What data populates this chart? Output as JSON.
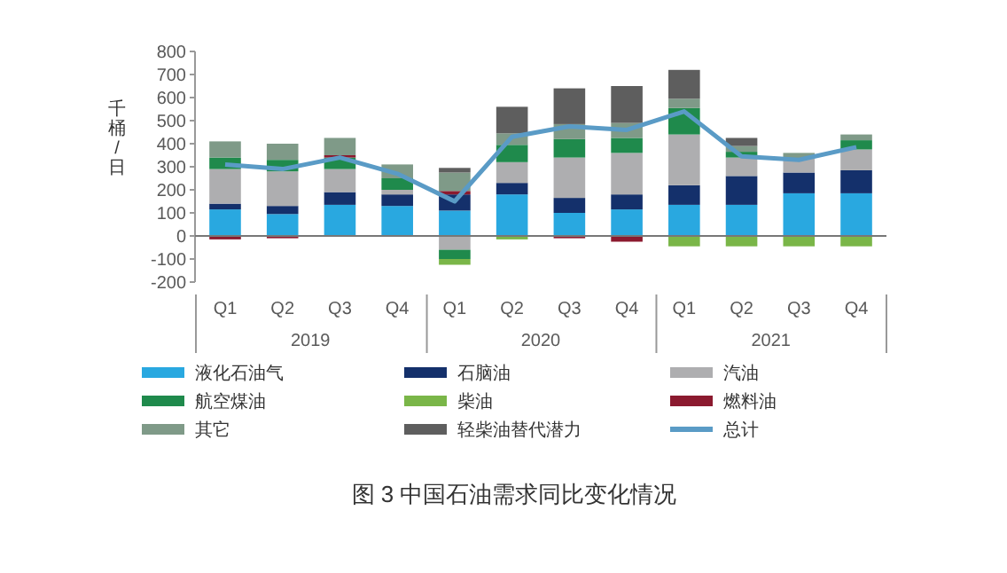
{
  "chart_data": {
    "type": "bar",
    "stacked": true,
    "title": "图 3 中国石油需求同比变化情况",
    "ylabel": "千桶/日",
    "categories": [
      "Q1",
      "Q2",
      "Q3",
      "Q4",
      "Q1",
      "Q2",
      "Q3",
      "Q4",
      "Q1",
      "Q2",
      "Q3",
      "Q4"
    ],
    "annotations": [
      "2019",
      "2020",
      "2021"
    ],
    "ylim": [
      -200,
      800
    ],
    "yticks": [
      -200,
      -100,
      0,
      100,
      200,
      300,
      400,
      500,
      600,
      700,
      800
    ],
    "grid": false,
    "legend": "bottom",
    "ref_lines": [
      {
        "axis": "y",
        "value": 0,
        "color": "#777777"
      }
    ],
    "series": [
      {
        "name": "液化石油气",
        "color": "#29a8e0",
        "values": [
          115,
          95,
          135,
          130,
          110,
          180,
          100,
          115,
          135,
          135,
          185,
          185
        ]
      },
      {
        "name": "石脑油",
        "color": "#14306b",
        "values": [
          25,
          35,
          55,
          50,
          70,
          50,
          65,
          65,
          85,
          125,
          90,
          100
        ]
      },
      {
        "name": "汽油",
        "color": "#aeaeb0",
        "values": [
          150,
          150,
          100,
          20,
          -60,
          90,
          175,
          180,
          220,
          80,
          60,
          90
        ]
      },
      {
        "name": "航空煤油",
        "color": "#1f8a4c",
        "values": [
          50,
          50,
          50,
          50,
          -40,
          75,
          80,
          65,
          115,
          25,
          null,
          40
        ]
      },
      {
        "name": "柴油",
        "color": "#7ab648",
        "values": [
          null,
          null,
          null,
          null,
          -25,
          -15,
          null,
          null,
          -45,
          -45,
          -45,
          -45
        ]
      },
      {
        "name": "燃料油",
        "color": "#8b1a2f",
        "values": [
          -15,
          -10,
          10,
          null,
          15,
          null,
          -10,
          -25,
          null,
          null,
          null,
          null
        ]
      },
      {
        "name": "其它",
        "color": "#7f9a88",
        "values": [
          70,
          70,
          75,
          60,
          80,
          50,
          65,
          65,
          40,
          25,
          25,
          25
        ]
      },
      {
        "name": "轻柴油替代潜力",
        "color": "#5e5e5e",
        "values": [
          null,
          null,
          null,
          null,
          20,
          115,
          155,
          160,
          125,
          35,
          null,
          null
        ]
      },
      {
        "name": "总计",
        "type": "line",
        "color": "#5a9bc6",
        "marker": "none",
        "values": [
          310,
          290,
          340,
          270,
          150,
          430,
          475,
          460,
          540,
          345,
          330,
          385
        ]
      }
    ]
  }
}
